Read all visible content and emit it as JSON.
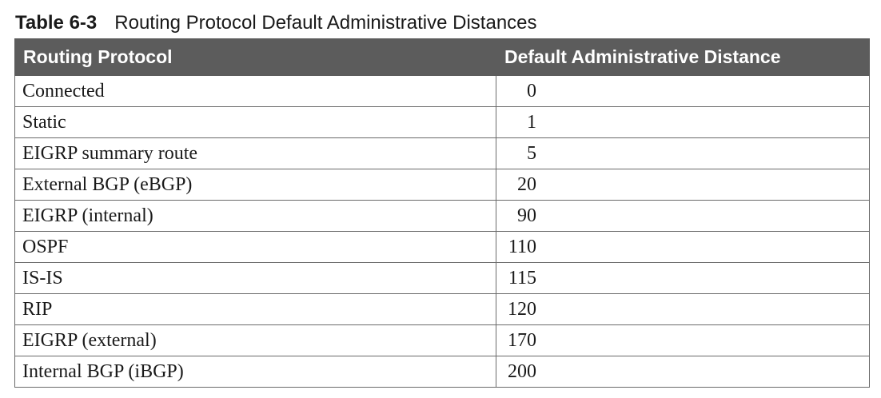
{
  "caption": {
    "number": "Table 6-3",
    "title": "Routing Protocol Default Administrative Distances"
  },
  "table": {
    "headers": [
      "Routing Protocol",
      "Default Administrative Distance"
    ],
    "rows": [
      {
        "protocol": "Connected",
        "distance": "0"
      },
      {
        "protocol": "Static",
        "distance": "1"
      },
      {
        "protocol": "EIGRP summary route",
        "distance": "5"
      },
      {
        "protocol": "External BGP (eBGP)",
        "distance": "20"
      },
      {
        "protocol": "EIGRP (internal)",
        "distance": "90"
      },
      {
        "protocol": "OSPF",
        "distance": "110"
      },
      {
        "protocol": "IS-IS",
        "distance": "115"
      },
      {
        "protocol": "RIP",
        "distance": "120"
      },
      {
        "protocol": "EIGRP (external)",
        "distance": "170"
      },
      {
        "protocol": "Internal BGP (iBGP)",
        "distance": "200"
      }
    ]
  },
  "colors": {
    "header_bg": "#5c5c5c",
    "header_text": "#ffffff",
    "border": "#6a6a6a",
    "text": "#1a1a1a"
  }
}
